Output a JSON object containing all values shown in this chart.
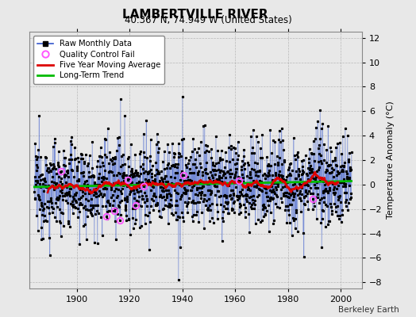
{
  "title": "LAMBERTVILLE RIVER",
  "subtitle": "40.367 N, 74.949 W (United States)",
  "ylabel": "Temperature Anomaly (°C)",
  "credit": "Berkeley Earth",
  "ylim": [
    -8.5,
    12.5
  ],
  "yticks": [
    -8,
    -6,
    -4,
    -2,
    0,
    2,
    4,
    6,
    8,
    10,
    12
  ],
  "xlim": [
    1882,
    2008
  ],
  "xticks": [
    1900,
    1920,
    1940,
    1960,
    1980,
    2000
  ],
  "x_start": 1884,
  "x_end": 2004,
  "background_color": "#e8e8e8",
  "plot_bg_color": "#e8e8e8",
  "raw_line_color": "#3355cc",
  "raw_dot_color": "#000000",
  "qc_fail_color": "#ff55ff",
  "moving_avg_color": "#dd0000",
  "trend_color": "#00bb00",
  "legend_loc": "upper left",
  "seed": 12345,
  "noise_std": 1.8,
  "n_spikes": 20,
  "spike_mag": 3.5,
  "n_qc": 10
}
